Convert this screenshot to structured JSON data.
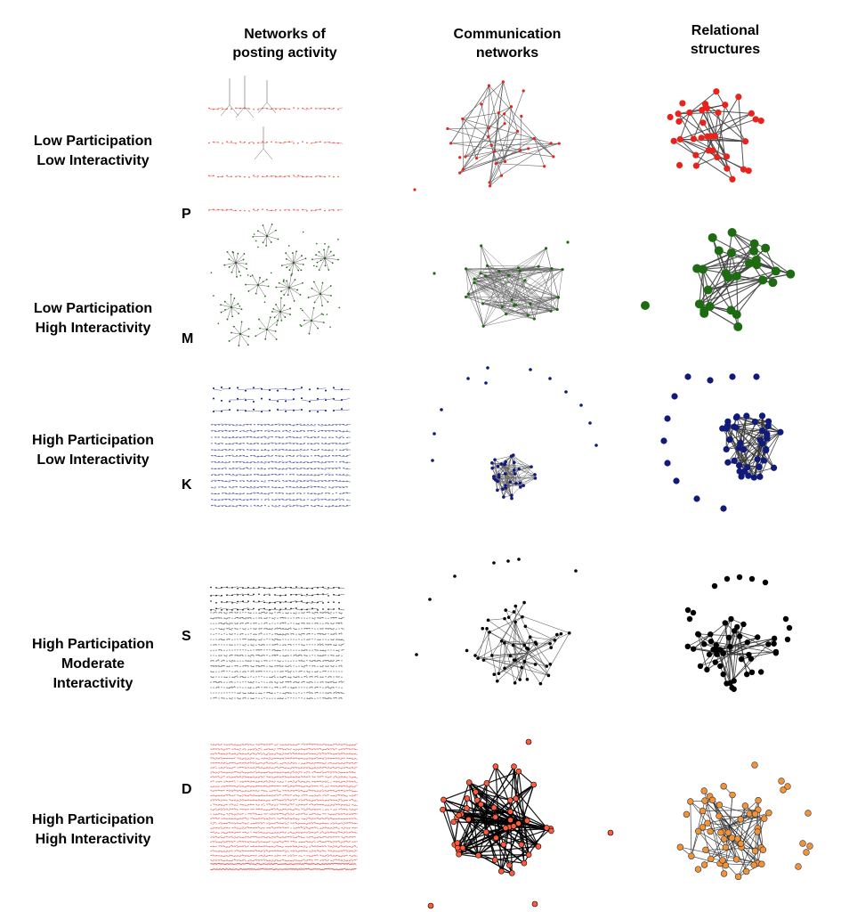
{
  "columns": {
    "posting": {
      "line1": "Networks of",
      "line2": "posting activity"
    },
    "communication": {
      "line1": "Communication",
      "line2": "networks"
    },
    "relational": {
      "line1": "Relational",
      "line2": "structures"
    }
  },
  "rows": [
    {
      "code": "P",
      "line1": "Low Participation",
      "line2": "Low Interactivity",
      "line3": "",
      "color": "#e8231c"
    },
    {
      "code": "M",
      "line1": "Low Participation",
      "line2": "High Interactivity",
      "line3": "",
      "color": "#1e6b12"
    },
    {
      "code": "K",
      "line1": "High Participation",
      "line2": "Low Interactivity",
      "line3": "",
      "color": "#101a7a"
    },
    {
      "code": "S",
      "line1": "High Participation",
      "line2": "Moderate",
      "line3": "Interactivity",
      "color": "#000000"
    },
    {
      "code": "D",
      "line1": "High Participation",
      "line2": "High Interactivity",
      "line3": "",
      "color": "#f0933a"
    }
  ],
  "extra_colors": {
    "communication_D_nodes": "#ff5a3c",
    "edge_gray": "#777777"
  }
}
